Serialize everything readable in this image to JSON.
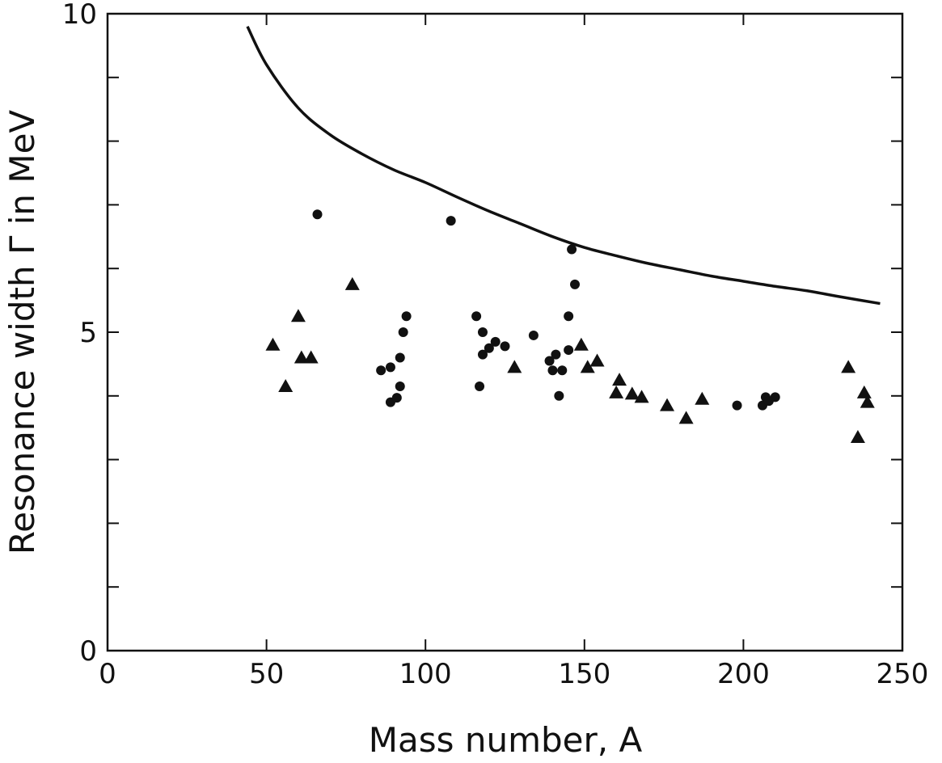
{
  "chart_data": {
    "type": "scatter",
    "title": "",
    "xlabel": "Mass number, A",
    "ylabel": "Resonance width Γ in MeV",
    "xlim": [
      0,
      250
    ],
    "ylim": [
      0,
      10
    ],
    "x_tick_labels": [
      {
        "value": 0,
        "label": "0"
      },
      {
        "value": 50,
        "label": "50"
      },
      {
        "value": 100,
        "label": "100"
      },
      {
        "value": 150,
        "label": "150"
      },
      {
        "value": 200,
        "label": "200"
      },
      {
        "value": 250,
        "label": "250"
      }
    ],
    "y_tick_labels": [
      {
        "value": 0,
        "label": "0"
      },
      {
        "value": 5,
        "label": "5"
      },
      {
        "value": 10,
        "label": "10"
      }
    ],
    "x_minor_ticks": [
      50,
      100,
      150,
      200
    ],
    "y_minor_ticks": [
      1,
      2,
      3,
      4,
      6,
      7,
      8,
      9
    ],
    "grid": false,
    "series": [
      {
        "marker": "circle",
        "color": "#111111",
        "points": [
          [
            66,
            6.85
          ],
          [
            86,
            4.4
          ],
          [
            89,
            4.45
          ],
          [
            89,
            3.9
          ],
          [
            91,
            3.97
          ],
          [
            92,
            4.15
          ],
          [
            92,
            4.6
          ],
          [
            93,
            5.0
          ],
          [
            94,
            5.25
          ],
          [
            108,
            6.75
          ],
          [
            116,
            5.25
          ],
          [
            117,
            4.15
          ],
          [
            118,
            5.0
          ],
          [
            118,
            4.65
          ],
          [
            120,
            4.75
          ],
          [
            122,
            4.85
          ],
          [
            125,
            4.78
          ],
          [
            134,
            4.95
          ],
          [
            139,
            4.55
          ],
          [
            140,
            4.4
          ],
          [
            141,
            4.65
          ],
          [
            142,
            4.0
          ],
          [
            143,
            4.4
          ],
          [
            145,
            5.25
          ],
          [
            145,
            4.72
          ],
          [
            146,
            6.3
          ],
          [
            147,
            5.75
          ],
          [
            198,
            3.85
          ],
          [
            206,
            3.85
          ],
          [
            207,
            3.98
          ],
          [
            208,
            3.92
          ],
          [
            210,
            3.98
          ]
        ]
      },
      {
        "marker": "triangle",
        "color": "#111111",
        "points": [
          [
            52,
            4.8
          ],
          [
            56,
            4.15
          ],
          [
            60,
            5.25
          ],
          [
            61,
            4.6
          ],
          [
            64,
            4.6
          ],
          [
            77,
            5.75
          ],
          [
            128,
            4.45
          ],
          [
            149,
            4.8
          ],
          [
            151,
            4.45
          ],
          [
            154,
            4.55
          ],
          [
            160,
            4.05
          ],
          [
            161,
            4.25
          ],
          [
            165,
            4.03
          ],
          [
            168,
            3.98
          ],
          [
            176,
            3.85
          ],
          [
            182,
            3.65
          ],
          [
            187,
            3.95
          ],
          [
            233,
            4.45
          ],
          [
            236,
            3.35
          ],
          [
            238,
            4.05
          ],
          [
            239,
            3.9
          ]
        ]
      },
      {
        "marker": "line",
        "color": "#111111",
        "points": [
          [
            44,
            9.8
          ],
          [
            50,
            9.2
          ],
          [
            60,
            8.52
          ],
          [
            70,
            8.1
          ],
          [
            80,
            7.8
          ],
          [
            90,
            7.55
          ],
          [
            100,
            7.35
          ],
          [
            110,
            7.12
          ],
          [
            120,
            6.9
          ],
          [
            130,
            6.7
          ],
          [
            140,
            6.5
          ],
          [
            150,
            6.33
          ],
          [
            160,
            6.2
          ],
          [
            170,
            6.08
          ],
          [
            180,
            5.98
          ],
          [
            190,
            5.88
          ],
          [
            200,
            5.8
          ],
          [
            210,
            5.72
          ],
          [
            220,
            5.65
          ],
          [
            230,
            5.56
          ],
          [
            243,
            5.45
          ]
        ]
      }
    ]
  }
}
